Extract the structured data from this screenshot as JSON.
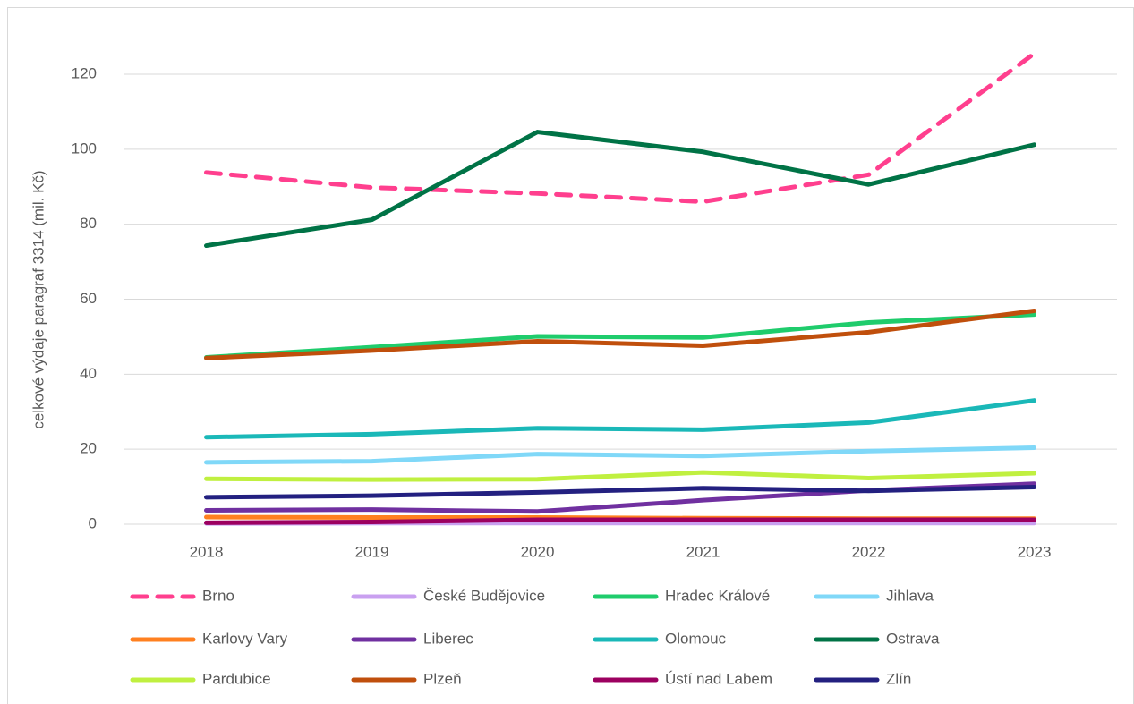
{
  "chart_data": {
    "type": "line",
    "y_label": "celkové výdaje paragraf 3314 (mil. Kč)",
    "categories": [
      "2018",
      "2019",
      "2020",
      "2021",
      "2022",
      "2023"
    ],
    "ylim": [
      0,
      130
    ],
    "yticks": [
      0,
      20,
      40,
      60,
      80,
      100,
      120
    ],
    "grid": true,
    "legend": "bottom",
    "series": [
      {
        "name": "Brno",
        "color": "#ff3f8e",
        "dash": true,
        "values": [
          93.8,
          89.8,
          88.2,
          86.0,
          93.2,
          125.5
        ]
      },
      {
        "name": "České Budějovice",
        "color": "#c9a0f0",
        "values": [
          0.2,
          0.3,
          0.3,
          0.3,
          0.3,
          0.3
        ]
      },
      {
        "name": "Hradec Králové",
        "color": "#1fcc6c",
        "values": [
          44.5,
          47.2,
          50.1,
          49.8,
          53.8,
          55.9
        ]
      },
      {
        "name": "Jihlava",
        "color": "#80d8f8",
        "values": [
          16.5,
          16.8,
          18.7,
          18.2,
          19.5,
          20.4
        ]
      },
      {
        "name": "Karlovy Vary",
        "color": "#ff8020",
        "values": [
          1.9,
          1.8,
          1.8,
          1.6,
          1.5,
          1.5
        ]
      },
      {
        "name": "Liberec",
        "color": "#7030a0",
        "values": [
          3.7,
          3.9,
          3.4,
          6.4,
          9.0,
          10.8
        ]
      },
      {
        "name": "Olomouc",
        "color": "#1ab8b8",
        "values": [
          23.2,
          24.0,
          25.6,
          25.2,
          27.1,
          33.0
        ]
      },
      {
        "name": "Ostrava",
        "color": "#007346",
        "values": [
          74.3,
          81.2,
          104.6,
          99.3,
          90.6,
          101.2
        ]
      },
      {
        "name": "Pardubice",
        "color": "#c0f040",
        "values": [
          12.1,
          11.9,
          12.0,
          13.8,
          12.3,
          13.6
        ]
      },
      {
        "name": "Plzeň",
        "color": "#c04f0c",
        "values": [
          44.3,
          46.3,
          48.8,
          47.6,
          51.2,
          56.9
        ]
      },
      {
        "name": "Ústí nad Labem",
        "color": "#9c0060",
        "values": [
          0.4,
          0.6,
          1.2,
          1.2,
          1.2,
          1.2
        ]
      },
      {
        "name": "Zlín",
        "color": "#232080",
        "values": [
          7.2,
          7.6,
          8.5,
          9.6,
          8.9,
          9.9
        ]
      }
    ]
  }
}
